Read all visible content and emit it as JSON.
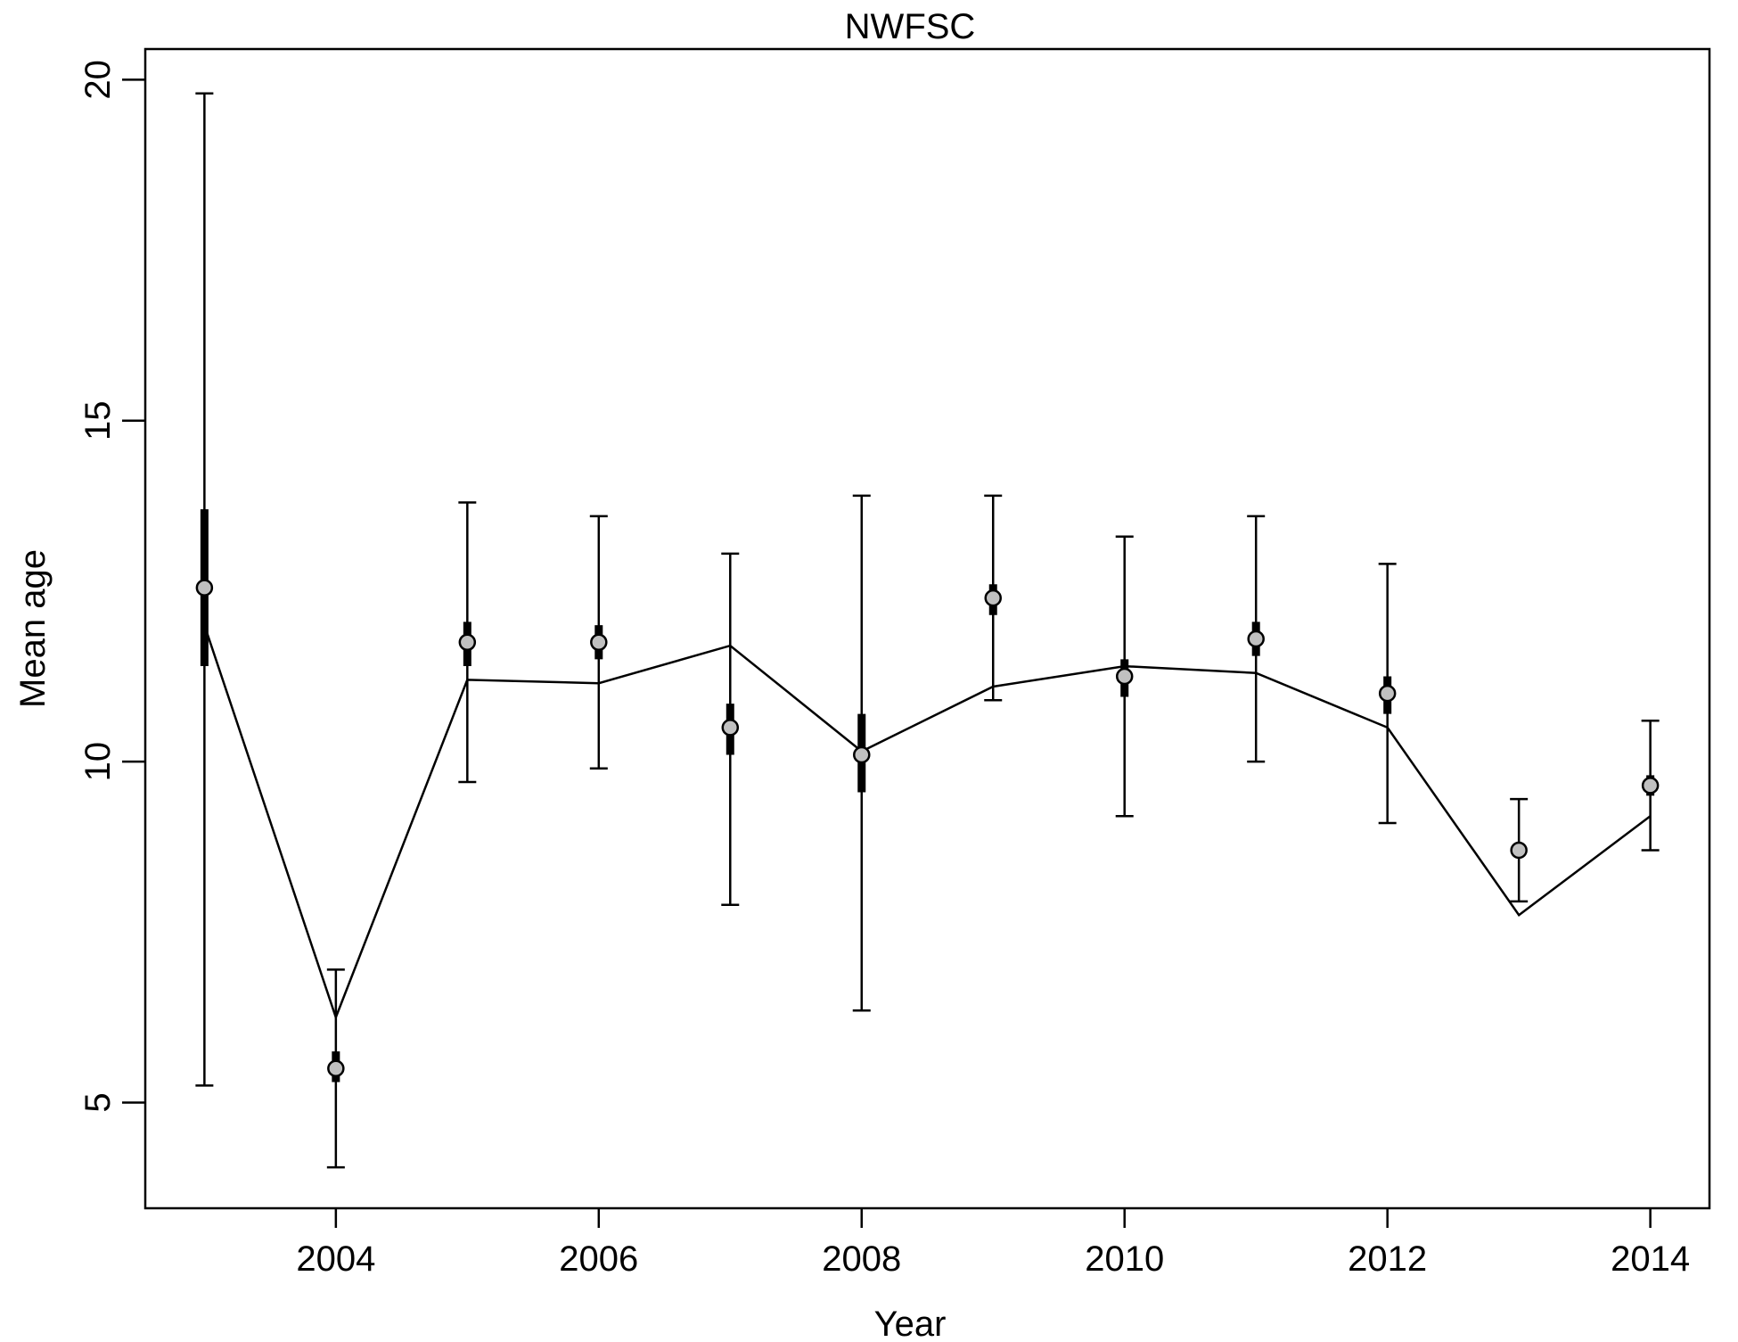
{
  "chart_data": {
    "type": "line",
    "title": "NWFSC",
    "xlabel": "Year",
    "ylabel": "Mean age",
    "xlim": [
      2002.55,
      2014.45
    ],
    "ylim": [
      3.45,
      20.45
    ],
    "x_ticks": [
      2004,
      2006,
      2008,
      2010,
      2012,
      2014
    ],
    "y_ticks": [
      5,
      10,
      15,
      20
    ],
    "grid": false,
    "legend": "none",
    "observed": [
      {
        "x": 2003,
        "y": 12.55,
        "ci_low": 5.25,
        "ci_high": 19.8,
        "inner_low": 11.4,
        "inner_high": 13.7
      },
      {
        "x": 2004,
        "y": 5.5,
        "ci_low": 4.05,
        "ci_high": 6.95,
        "inner_low": 5.3,
        "inner_high": 5.75
      },
      {
        "x": 2005,
        "y": 11.75,
        "ci_low": 9.7,
        "ci_high": 13.8,
        "inner_low": 11.4,
        "inner_high": 12.05
      },
      {
        "x": 2006,
        "y": 11.75,
        "ci_low": 9.9,
        "ci_high": 13.6,
        "inner_low": 11.5,
        "inner_high": 12.0
      },
      {
        "x": 2007,
        "y": 10.5,
        "ci_low": 7.9,
        "ci_high": 13.05,
        "inner_low": 10.1,
        "inner_high": 10.85
      },
      {
        "x": 2008,
        "y": 10.1,
        "ci_low": 6.35,
        "ci_high": 13.9,
        "inner_low": 9.55,
        "inner_high": 10.7
      },
      {
        "x": 2009,
        "y": 12.4,
        "ci_low": 10.9,
        "ci_high": 13.9,
        "inner_low": 12.15,
        "inner_high": 12.6
      },
      {
        "x": 2010,
        "y": 11.25,
        "ci_low": 9.2,
        "ci_high": 13.3,
        "inner_low": 10.95,
        "inner_high": 11.5
      },
      {
        "x": 2011,
        "y": 11.8,
        "ci_low": 10.0,
        "ci_high": 13.6,
        "inner_low": 11.55,
        "inner_high": 12.05
      },
      {
        "x": 2012,
        "y": 11.0,
        "ci_low": 9.1,
        "ci_high": 12.9,
        "inner_low": 10.7,
        "inner_high": 11.25
      },
      {
        "x": 2013,
        "y": 8.7,
        "ci_low": 7.95,
        "ci_high": 9.45,
        "inner_low": 8.6,
        "inner_high": 8.8
      },
      {
        "x": 2014,
        "y": 9.65,
        "ci_low": 8.7,
        "ci_high": 10.6,
        "inner_low": 9.5,
        "inner_high": 9.8
      }
    ],
    "expected": [
      {
        "x": 2003,
        "y": 12.0
      },
      {
        "x": 2004,
        "y": 6.25
      },
      {
        "x": 2005,
        "y": 11.2
      },
      {
        "x": 2006,
        "y": 11.15
      },
      {
        "x": 2007,
        "y": 11.7
      },
      {
        "x": 2008,
        "y": 10.15
      },
      {
        "x": 2009,
        "y": 11.1
      },
      {
        "x": 2010,
        "y": 11.4
      },
      {
        "x": 2011,
        "y": 11.3
      },
      {
        "x": 2012,
        "y": 10.5
      },
      {
        "x": 2013,
        "y": 7.75
      },
      {
        "x": 2014,
        "y": 9.2
      }
    ],
    "colors": {
      "point_fill": "#c0c0c0",
      "line": "#000000",
      "axis": "#000000"
    }
  }
}
